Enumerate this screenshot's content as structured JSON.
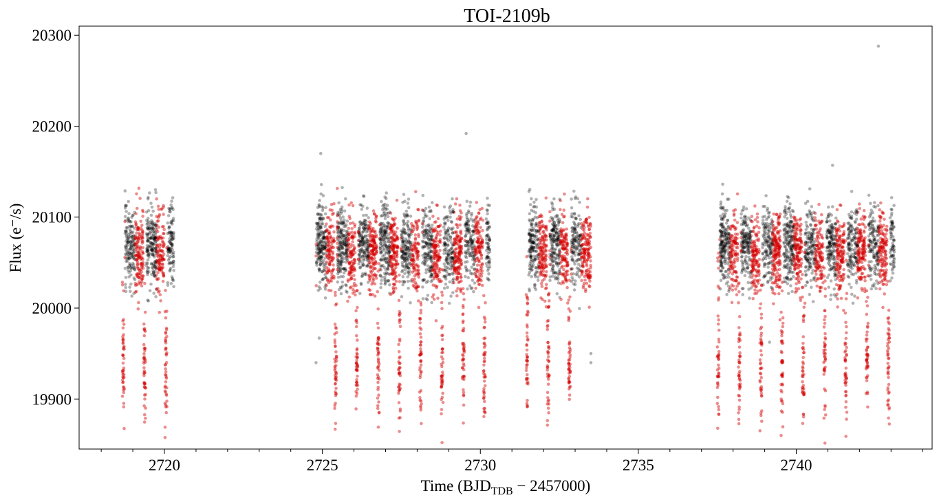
{
  "chart_data": {
    "type": "scatter",
    "title": "TOI-2109b",
    "xlabel": {
      "prefix": "Time (BJD",
      "subscript": "TDB",
      "suffix": " − 2457000)"
    },
    "ylabel": "Flux (e⁻/s)",
    "xlim": [
      2717.3,
      2744.3
    ],
    "ylim": [
      19845,
      20310
    ],
    "x_ticks": [
      2720,
      2725,
      2730,
      2735,
      2740
    ],
    "x_tick_labels": [
      "2720",
      "2725",
      "2730",
      "2735",
      "2740"
    ],
    "x_minor_tick_step": 1,
    "y_ticks": [
      19900,
      20000,
      20100,
      20200,
      20300
    ],
    "y_tick_labels": [
      "19900",
      "20000",
      "20100",
      "20200",
      "20300"
    ],
    "grid": false,
    "legend": "none",
    "out_of_transit_level": 20065,
    "out_of_transit_scatter": 22,
    "transit_depth_bottom": 19930,
    "orbital_period_days": 0.6725,
    "data_segments": [
      {
        "start": 2718.7,
        "end": 2720.3
      },
      {
        "start": 2724.8,
        "end": 2730.3
      },
      {
        "start": 2731.5,
        "end": 2733.5
      },
      {
        "start": 2737.5,
        "end": 2743.1
      }
    ],
    "transit_times": [
      2718.7,
      2719.38,
      2720.05,
      2725.42,
      2726.09,
      2726.77,
      2727.44,
      2728.11,
      2728.79,
      2729.46,
      2730.13,
      2731.48,
      2732.15,
      2732.82,
      2737.53,
      2738.2,
      2738.88,
      2739.55,
      2740.22,
      2740.9,
      2741.57,
      2742.24,
      2742.92
    ],
    "outlier_points": [
      {
        "x": 2724.95,
        "y": 20170
      },
      {
        "x": 2729.55,
        "y": 20192
      },
      {
        "x": 2741.15,
        "y": 20157
      },
      {
        "x": 2742.6,
        "y": 20288
      },
      {
        "x": 2724.8,
        "y": 19940
      },
      {
        "x": 2724.9,
        "y": 19967
      },
      {
        "x": 2733.5,
        "y": 19950
      },
      {
        "x": 2733.5,
        "y": 19940
      }
    ],
    "series": [
      {
        "color": "#000000",
        "opacity": 0.3
      },
      {
        "color": "#d40000",
        "opacity": 0.45
      }
    ]
  }
}
